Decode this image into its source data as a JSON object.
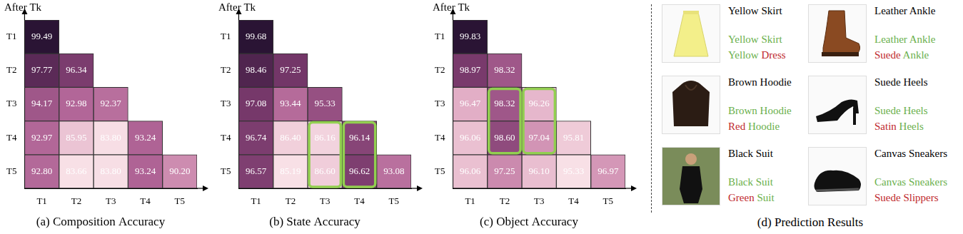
{
  "chart_data": [
    {
      "type": "heatmap",
      "title": "(a) Composition Accuracy",
      "y_label": "After Tk",
      "rows": [
        "T1",
        "T2",
        "T3",
        "T4",
        "T5"
      ],
      "columns": [
        "T1",
        "T2",
        "T3",
        "T4",
        "T5"
      ],
      "cells": [
        [
          99.49
        ],
        [
          97.77,
          96.34
        ],
        [
          94.17,
          92.98,
          92.37
        ],
        [
          92.97,
          85.95,
          83.8,
          93.24
        ],
        [
          92.8,
          83.66,
          83.8,
          93.24,
          90.2
        ]
      ],
      "value_labels": [
        [
          "99.49"
        ],
        [
          "97.77",
          "96.34"
        ],
        [
          "94.17",
          "92.98",
          "92.37"
        ],
        [
          "92.97",
          "85.95",
          "83.80",
          "93.24"
        ],
        [
          "92.80",
          "83.66",
          "83.80",
          "93.24",
          "90.20"
        ]
      ],
      "data_labels": true
    },
    {
      "type": "heatmap",
      "title": "(b) State Accuracy",
      "y_label": "After Tk",
      "rows": [
        "T1",
        "T2",
        "T3",
        "T4",
        "T5"
      ],
      "columns": [
        "T1",
        "T2",
        "T3",
        "T4",
        "T5"
      ],
      "cells": [
        [
          99.68
        ],
        [
          98.46,
          97.25
        ],
        [
          97.08,
          93.44,
          95.33
        ],
        [
          96.74,
          86.4,
          86.16,
          96.14
        ],
        [
          96.57,
          85.19,
          86.6,
          96.62,
          93.08
        ]
      ],
      "value_labels": [
        [
          "99.68"
        ],
        [
          "98.46",
          "97.25"
        ],
        [
          "97.08",
          "93.44",
          "95.33"
        ],
        [
          "96.74",
          "86.40",
          "86.16",
          "96.14"
        ],
        [
          "96.57",
          "85.19",
          "86.60",
          "96.62",
          "93.08"
        ]
      ],
      "data_labels": true,
      "highlights": [
        {
          "column": "T3",
          "rows": [
            "T4",
            "T5"
          ]
        },
        {
          "column": "T4",
          "rows": [
            "T4",
            "T5"
          ]
        }
      ]
    },
    {
      "type": "heatmap",
      "title": "(c) Object Accuracy",
      "y_label": "After Tk",
      "rows": [
        "T1",
        "T2",
        "T3",
        "T4",
        "T5"
      ],
      "columns": [
        "T1",
        "T2",
        "T3",
        "T4",
        "T5"
      ],
      "cells": [
        [
          99.83
        ],
        [
          98.97,
          98.32
        ],
        [
          96.47,
          98.32,
          96.26
        ],
        [
          96.06,
          98.6,
          97.04,
          95.81
        ],
        [
          96.06,
          97.25,
          96.1,
          95.33,
          96.97
        ]
      ],
      "value_labels": [
        [
          "99.83"
        ],
        [
          "98.97",
          "98.32"
        ],
        [
          "96.47",
          "98.32",
          "96.26"
        ],
        [
          "96.06",
          "98.60",
          "97.04",
          "95.81"
        ],
        [
          "96.06",
          "97.25",
          "96.10",
          "95.33",
          "96.97"
        ]
      ],
      "data_labels": true,
      "highlights": [
        {
          "column": "T2",
          "rows": [
            "T3",
            "T4"
          ]
        },
        {
          "column": "T3",
          "rows": [
            "T3",
            "T4"
          ]
        }
      ]
    }
  ],
  "prediction_panel": {
    "title": "(d) Prediction Results",
    "items": [
      {
        "label": "Yellow Skirt",
        "predictions": [
          [
            {
              "text": "Yellow",
              "correct": true
            },
            {
              "text": "Skirt",
              "correct": true
            }
          ],
          [
            {
              "text": "Yellow",
              "correct": true
            },
            {
              "text": "Dress",
              "correct": false
            }
          ]
        ]
      },
      {
        "label": "Leather Ankle",
        "predictions": [
          [
            {
              "text": "Leather",
              "correct": true
            },
            {
              "text": "Ankle",
              "correct": true
            }
          ],
          [
            {
              "text": "Suede",
              "correct": false
            },
            {
              "text": "Ankle",
              "correct": true
            }
          ]
        ]
      },
      {
        "label": "Brown Hoodie",
        "predictions": [
          [
            {
              "text": "Brown",
              "correct": true
            },
            {
              "text": "Hoodie",
              "correct": true
            }
          ],
          [
            {
              "text": "Red",
              "correct": false
            },
            {
              "text": "Hoodie",
              "correct": true
            }
          ]
        ]
      },
      {
        "label": "Suede Heels",
        "predictions": [
          [
            {
              "text": "Suede",
              "correct": true
            },
            {
              "text": "Heels",
              "correct": true
            }
          ],
          [
            {
              "text": "Satin",
              "correct": false
            },
            {
              "text": "Heels",
              "correct": true
            }
          ]
        ]
      },
      {
        "label": "Black Suit",
        "predictions": [
          [
            {
              "text": "Black",
              "correct": true
            },
            {
              "text": "Suit",
              "correct": true
            }
          ],
          [
            {
              "text": "Green",
              "correct": false
            },
            {
              "text": "Suit",
              "correct": true
            }
          ]
        ]
      },
      {
        "label": "Canvas Sneakers",
        "predictions": [
          [
            {
              "text": "Canvas",
              "correct": true
            },
            {
              "text": "Sneakers",
              "correct": true
            }
          ],
          [
            {
              "text": "Suede",
              "correct": false
            },
            {
              "text": "Slippers",
              "correct": false
            }
          ]
        ]
      }
    ]
  }
}
